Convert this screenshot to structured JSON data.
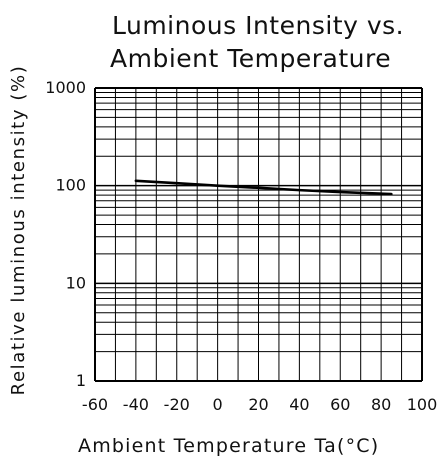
{
  "chart_data": {
    "type": "line",
    "title": "Luminous Intensity vs.\nAmbient Temperature",
    "title_lines": [
      "Luminous Intensity vs.",
      "Ambient Temperature"
    ],
    "xlabel": "Ambient Temperature Ta(°C)",
    "ylabel": "Relative luminous intensity (%)",
    "y_scale": "log",
    "xlim": [
      -60,
      100
    ],
    "ylim": [
      1,
      1000
    ],
    "x_ticks": [
      "-60",
      "-40",
      "-20",
      "0",
      "20",
      "40",
      "60",
      "80",
      "100"
    ],
    "y_ticks": [
      "1000",
      "100",
      "10",
      "1"
    ],
    "grid": true,
    "series": [
      {
        "x": [
          -40,
          -20,
          0,
          20,
          40,
          60,
          85
        ],
        "y": [
          112,
          106,
          100,
          95,
          90,
          86,
          82
        ]
      }
    ],
    "line_color": "#000000",
    "grid_color": "#000000"
  }
}
